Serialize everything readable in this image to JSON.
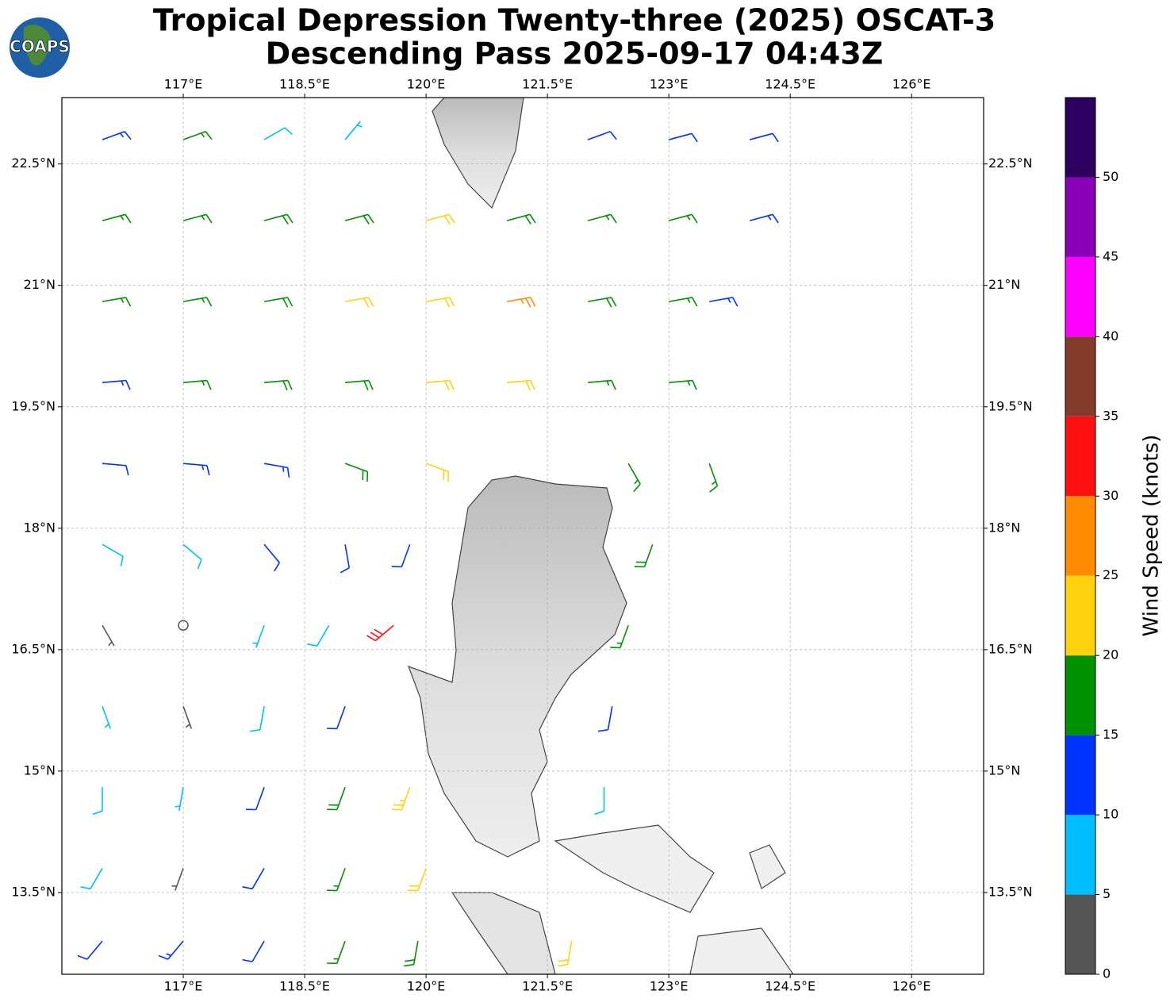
{
  "chart_data": {
    "type": "barbs",
    "title": "Tropical Depression Twenty-three (2025) OSCAT-3",
    "subtitle": "Descending Pass 2025-09-17 04:43Z",
    "logo": "COAPS",
    "xlim": [
      115.5,
      126.89
    ],
    "ylim": [
      12.49,
      23.32
    ],
    "xticks": [
      {
        "value": 117,
        "label": "117°E"
      },
      {
        "value": 118.5,
        "label": "118.5°E"
      },
      {
        "value": 120,
        "label": "120°E"
      },
      {
        "value": 121.5,
        "label": "121.5°E"
      },
      {
        "value": 123,
        "label": "123°E"
      },
      {
        "value": 124.5,
        "label": "124.5°E"
      },
      {
        "value": 126,
        "label": "126°E"
      }
    ],
    "yticks": [
      {
        "value": 13.5,
        "label": "13.5°N"
      },
      {
        "value": 15,
        "label": "15°N"
      },
      {
        "value": 16.5,
        "label": "16.5°N"
      },
      {
        "value": 18,
        "label": "18°N"
      },
      {
        "value": 19.5,
        "label": "19.5°N"
      },
      {
        "value": 21,
        "label": "21°N"
      },
      {
        "value": 22.5,
        "label": "22.5°N"
      }
    ],
    "grid": true,
    "barbs": {
      "lon": [
        116,
        117,
        118,
        119,
        122,
        123,
        124,
        116,
        117,
        118,
        119,
        120,
        121,
        122,
        123,
        124,
        116,
        117,
        118,
        119,
        120,
        121,
        122,
        123,
        123.5,
        116,
        117,
        118,
        119,
        120,
        121,
        122,
        123,
        116,
        117,
        118,
        119,
        120,
        122.5,
        123.5,
        116,
        117,
        118,
        119,
        119.8,
        122.8,
        116,
        117,
        118,
        118.8,
        119.6,
        122.5,
        116,
        117,
        118,
        119,
        122.3,
        116,
        117,
        118,
        119,
        119.8,
        122.2,
        116,
        117,
        118,
        119,
        120,
        116,
        117,
        118,
        119,
        119.9,
        121.8
      ],
      "lat": [
        22.8,
        22.8,
        22.8,
        22.8,
        22.8,
        22.8,
        22.8,
        21.8,
        21.8,
        21.8,
        21.8,
        21.8,
        21.8,
        21.8,
        21.8,
        21.8,
        20.8,
        20.8,
        20.8,
        20.8,
        20.8,
        20.8,
        20.8,
        20.8,
        20.8,
        19.8,
        19.8,
        19.8,
        19.8,
        19.8,
        19.8,
        19.8,
        19.8,
        18.8,
        18.8,
        18.8,
        18.8,
        18.8,
        18.8,
        18.8,
        17.8,
        17.8,
        17.8,
        17.8,
        17.8,
        17.8,
        16.8,
        16.8,
        16.8,
        16.8,
        16.8,
        16.8,
        15.8,
        15.8,
        15.8,
        15.8,
        15.8,
        14.8,
        14.8,
        14.8,
        14.8,
        14.8,
        14.8,
        13.8,
        13.8,
        13.8,
        13.8,
        13.8,
        12.9,
        12.9,
        12.9,
        12.9,
        12.9,
        12.9
      ],
      "speed": [
        14,
        15,
        8,
        7,
        12,
        10,
        12,
        16,
        17,
        18,
        19,
        21,
        19,
        17,
        15,
        13,
        16,
        17,
        18,
        21,
        22,
        26,
        19,
        17,
        13,
        13,
        15,
        18,
        19,
        22,
        21,
        17,
        16,
        12,
        13,
        14,
        18,
        22,
        16,
        15,
        8,
        8,
        10,
        12,
        11,
        18,
        4,
        2,
        6,
        9,
        30,
        16,
        7,
        4,
        8,
        12,
        10,
        8,
        6,
        10,
        18,
        23,
        8,
        8,
        4,
        12,
        16,
        21,
        12,
        13,
        12,
        17,
        18,
        20
      ],
      "dir": [
        70,
        70,
        60,
        40,
        70,
        75,
        75,
        75,
        75,
        75,
        75,
        75,
        75,
        75,
        75,
        75,
        80,
        80,
        80,
        80,
        80,
        80,
        80,
        80,
        80,
        85,
        85,
        85,
        85,
        85,
        85,
        85,
        85,
        95,
        95,
        100,
        110,
        110,
        150,
        160,
        120,
        130,
        140,
        170,
        200,
        200,
        150,
        180,
        200,
        210,
        230,
        200,
        160,
        160,
        190,
        200,
        190,
        180,
        190,
        200,
        200,
        200,
        180,
        210,
        200,
        210,
        200,
        200,
        220,
        220,
        210,
        200,
        190,
        190
      ]
    },
    "colorbar": {
      "label": "Wind Speed (knots)",
      "clim": [
        0,
        55
      ],
      "ticks": [
        0,
        5,
        10,
        15,
        20,
        25,
        30,
        35,
        40,
        45,
        50
      ],
      "colors": [
        "#555555",
        "#00bfff",
        "#0033ff",
        "#009100",
        "#ffd20f",
        "#ff8c00",
        "#ff1010",
        "#843c2a",
        "#ff00ff",
        "#8a00b8",
        "#2d0060"
      ]
    }
  }
}
